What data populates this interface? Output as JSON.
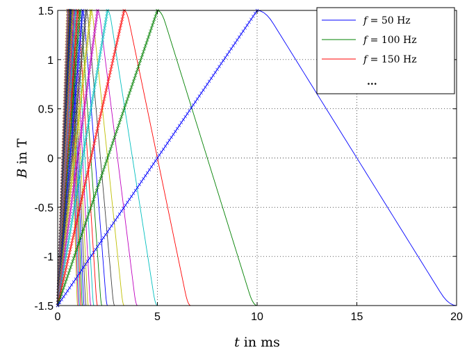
{
  "chart_data": {
    "type": "line",
    "title": "",
    "xlabel_var": "t",
    "xlabel_rest": " in ms",
    "ylabel_var": "B",
    "ylabel_rest": " in T",
    "xlim": [
      0,
      20
    ],
    "ylim": [
      -1.5,
      1.5
    ],
    "xticks": [
      "0",
      "5",
      "10",
      "15",
      "20"
    ],
    "yticks": [
      "-1.5",
      "-1",
      "-0.5",
      "0",
      "0.5",
      "1",
      "1.5"
    ],
    "xtick_values": [
      0,
      5,
      10,
      15,
      20
    ],
    "ytick_values": [
      -1.5,
      -1,
      -0.5,
      0,
      0.5,
      1,
      1.5
    ],
    "grid": true,
    "legend_position": "top-right",
    "legend": [
      {
        "var": "f",
        "text": " = 50 Hz",
        "color": "#0000ff"
      },
      {
        "var": "f",
        "text": " = 100 Hz",
        "color": "#008000"
      },
      {
        "var": "f",
        "text": " = 150 Hz",
        "color": "#ff0000"
      },
      {
        "var": "",
        "text": "...",
        "color": ""
      }
    ],
    "series_frequencies_hz": [
      50,
      100,
      150,
      200,
      250,
      300,
      350,
      400,
      450,
      500,
      550,
      600,
      650,
      700,
      750,
      800,
      850,
      900,
      950,
      1000
    ],
    "series_colors": [
      "#0000ff",
      "#008000",
      "#ff0000",
      "#00bfbf",
      "#bf00bf",
      "#bfbf00",
      "#404040"
    ],
    "peak_B": 1.5
  }
}
